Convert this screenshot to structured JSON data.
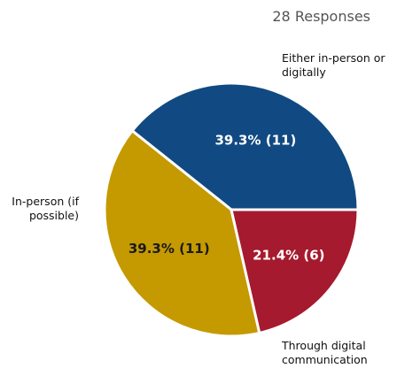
{
  "chart_data": {
    "type": "pie",
    "title": "28 Responses",
    "slices": [
      {
        "label_lines": [
          "Either in-person or",
          "digitally"
        ],
        "value": 11,
        "percent_label": "39.3% (11)",
        "color": "#114a82",
        "text_color": "#ffffff"
      },
      {
        "label_lines": [
          "Through digital",
          "communication"
        ],
        "value": 11,
        "percent_label": "39.3% (11)",
        "color": "#c49a00",
        "text_color": "#1a1a1a"
      },
      {
        "label_lines": [
          "In-person (if",
          "possible)"
        ],
        "value": 6,
        "percent_label": "21.4% (6)",
        "color": "#a51a2e",
        "text_color": "#ffffff"
      }
    ]
  }
}
